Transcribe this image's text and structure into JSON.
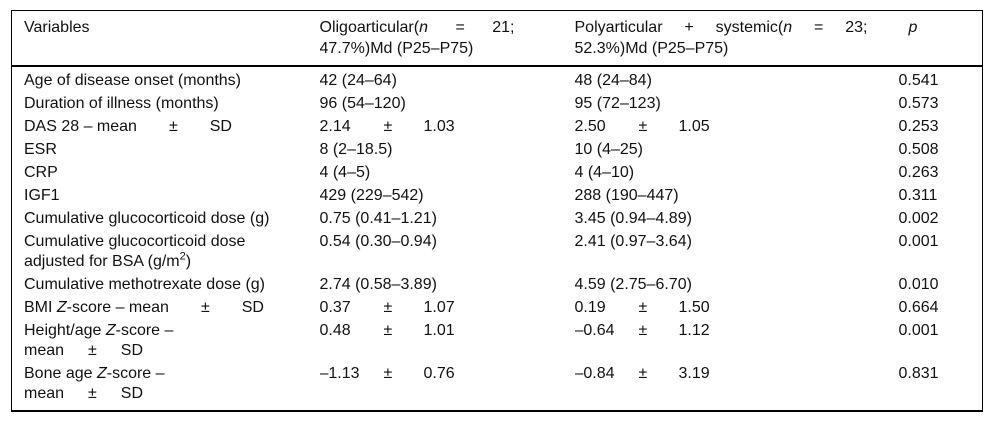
{
  "table": {
    "header": {
      "variables": "Variables",
      "oligoarticular_lines": [
        [
          {
            "t": "Oligoarticular("
          },
          {
            "t": "n",
            "i": true
          },
          {
            "t": " = 21;"
          }
        ],
        [
          {
            "t": "47.7%)Md (P25–P75)"
          }
        ]
      ],
      "polyarticular_lines": [
        [
          {
            "t": "Polyarticular + systemic("
          },
          {
            "t": "n",
            "i": true
          },
          {
            "t": " = 23;"
          }
        ],
        [
          {
            "t": "52.3%)Md (P25–P75)"
          }
        ]
      ],
      "p_lines": [
        [
          {
            "t": "p",
            "i": true
          }
        ]
      ]
    },
    "rows": [
      {
        "label": [
          {
            "t": "Age of disease onset (months)"
          }
        ],
        "oligo": "42 (24–64)",
        "poly": "48 (24–84)",
        "p": "0.541"
      },
      {
        "label": [
          {
            "t": "Duration of illness (months)"
          }
        ],
        "oligo": "96 (54–120)",
        "poly": "95 (72–123)",
        "p": "0.573"
      },
      {
        "label": [
          {
            "t": "DAS 28 – mean  ±  SD"
          }
        ],
        "oligo": {
          "v1": "2.14",
          "sep": "±",
          "v2": "1.03"
        },
        "poly": {
          "v1": "2.50",
          "sep": "±",
          "v2": "1.05"
        },
        "p": "0.253"
      },
      {
        "label": [
          {
            "t": "ESR"
          }
        ],
        "oligo": "8 (2–18.5)",
        "poly": "10 (4–25)",
        "p": "0.508"
      },
      {
        "label": [
          {
            "t": "CRP"
          }
        ],
        "oligo": "4 (4–5)",
        "poly": "4 (4–10)",
        "p": "0.263"
      },
      {
        "label": [
          {
            "t": "IGF1"
          }
        ],
        "oligo": "429 (229–542)",
        "poly": "288 (190–447)",
        "p": "0.311"
      },
      {
        "label": [
          {
            "t": "Cumulative glucocorticoid dose (g)"
          }
        ],
        "oligo": "0.75 (0.41–1.21)",
        "poly": "3.45 (0.94–4.89)",
        "p": "0.002"
      },
      {
        "label": [
          {
            "t": "Cumulative glucocorticoid dose"
          },
          {
            "br": true
          },
          {
            "t": "adjusted for BSA (g/m"
          },
          {
            "t": "2",
            "sup": true
          },
          {
            "t": ")"
          }
        ],
        "oligo": "0.54 (0.30–0.94)",
        "poly": "2.41 (0.97–3.64)",
        "p": "0.001"
      },
      {
        "label": [
          {
            "t": "Cumulative methotrexate dose (g)"
          }
        ],
        "oligo": "2.74 (0.58–3.89)",
        "poly": "4.59 (2.75–6.70)",
        "p": "0.010"
      },
      {
        "label": [
          {
            "t": "BMI "
          },
          {
            "t": "Z",
            "i": true
          },
          {
            "t": "-score – mean  ±  SD"
          }
        ],
        "oligo": {
          "v1": "0.37",
          "sep": "±",
          "v2": "1.07"
        },
        "poly": {
          "v1": "0.19",
          "sep": "±",
          "v2": "1.50"
        },
        "p": "0.664"
      },
      {
        "label": [
          {
            "t": "Height/age "
          },
          {
            "t": "Z",
            "i": true
          },
          {
            "t": "-score –"
          },
          {
            "br": true
          },
          {
            "t": "mean  ±  SD"
          }
        ],
        "oligo": {
          "v1": "0.48",
          "sep": "±",
          "v2": "1.01"
        },
        "poly": {
          "v1": "–0.64",
          "sep": "±",
          "v2": "1.12"
        },
        "p": "0.001"
      },
      {
        "label": [
          {
            "t": "Bone age "
          },
          {
            "t": "Z",
            "i": true
          },
          {
            "t": "-score –"
          },
          {
            "br": true
          },
          {
            "t": "mean  ±  SD"
          }
        ],
        "oligo": {
          "v1": "–1.13",
          "sep": "±",
          "v2": "0.76"
        },
        "poly": {
          "v1": "–0.84",
          "sep": "±",
          "v2": "3.19"
        },
        "p": "0.831"
      }
    ]
  }
}
